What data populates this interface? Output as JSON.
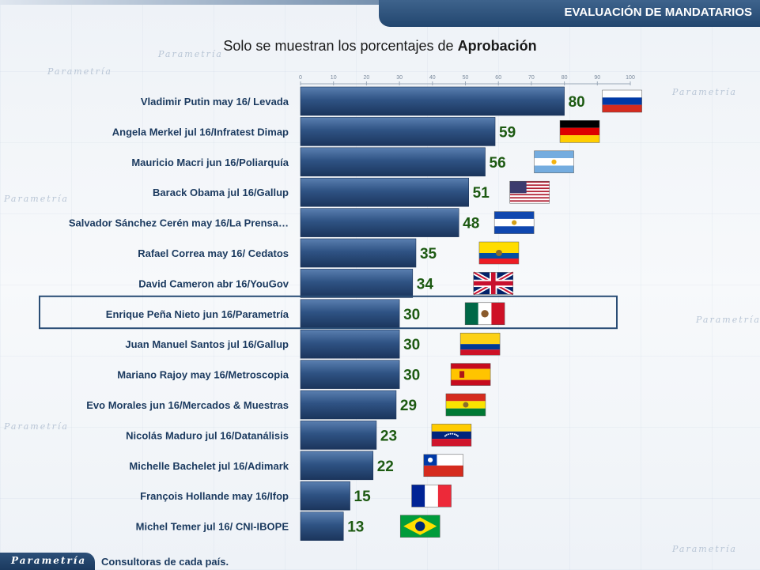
{
  "header": {
    "title": "EVALUACIÓN DE  MANDATARIOS"
  },
  "subtitle": {
    "prefix": "Solo se muestran los porcentajes de ",
    "bold": "Aprobación"
  },
  "watermark_text": "Parametría",
  "footer": {
    "logo": "Parametría",
    "note": "Consultoras de cada país."
  },
  "colors": {
    "bar": "#2f5384",
    "value_text": "#1d5a12",
    "highlight_border": "#2a4d75"
  },
  "chart_data": {
    "type": "bar",
    "orientation": "horizontal",
    "title": "",
    "xlabel": "",
    "ylabel": "",
    "xlim": [
      0,
      100
    ],
    "ticks": [
      0,
      10,
      20,
      30,
      40,
      50,
      60,
      70,
      80,
      90,
      100
    ],
    "highlight_index": 7,
    "categories": [
      "Vladimir Putin may 16/ Levada",
      "Angela Merkel jul 16/Infratest Dimap",
      "Mauricio Macri jun 16/Poliarquía",
      "Barack Obama jul 16/Gallup",
      "Salvador Sánchez Cerén may 16/La Prensa…",
      "Rafael Correa may 16/ Cedatos",
      "David Cameron  abr 16/YouGov",
      "Enrique Peña Nieto jun 16/Parametría",
      "Juan Manuel Santos jul 16/Gallup",
      "Mariano Rajoy may 16/Metroscopia",
      "Evo Morales jun 16/Mercados & Muestras",
      "Nicolás Maduro jul 16/Datanálisis",
      "Michelle Bachelet jul 16/Adimark",
      "François Hollande may 16/Ifop",
      "Michel Temer jul 16/ CNI-IBOPE"
    ],
    "values": [
      80,
      59,
      56,
      51,
      48,
      35,
      34,
      30,
      30,
      30,
      29,
      23,
      22,
      15,
      13
    ],
    "flags": [
      "russia-flag",
      "germany-flag",
      "argentina-flag",
      "usa-flag",
      "el-salvador-flag",
      "ecuador-flag",
      "uk-flag",
      "mexico-flag",
      "colombia-flag",
      "spain-flag",
      "bolivia-flag",
      "venezuela-flag",
      "chile-flag",
      "france-flag",
      "brazil-flag"
    ]
  }
}
